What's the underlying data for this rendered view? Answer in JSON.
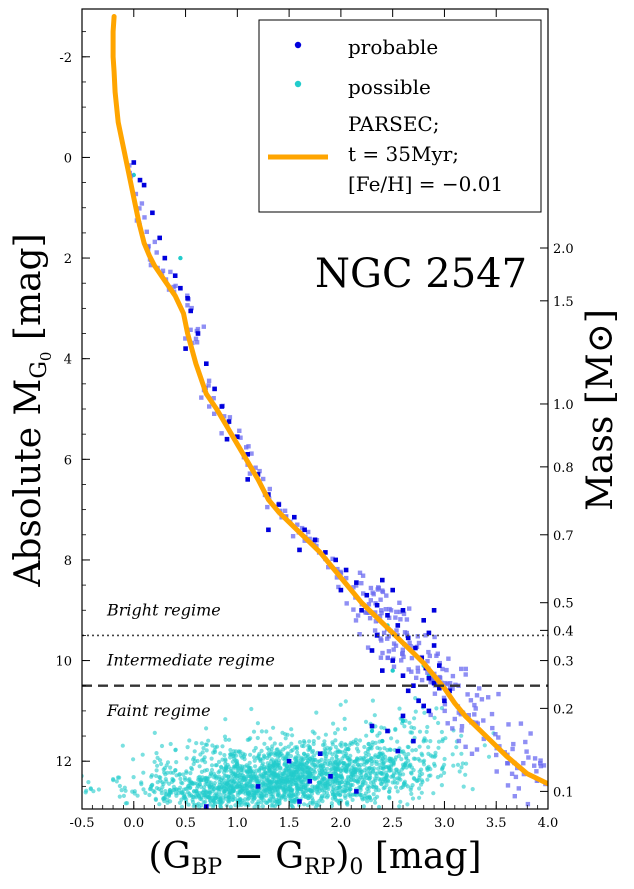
{
  "chart_data": {
    "type": "scatter",
    "annotation": "NGC 2547",
    "xlabel": {
      "main": "(G",
      "sub1": "BP",
      "mid": " − G",
      "sub2": "RP",
      "paren": ")",
      "sub3": "0",
      "tail": " [mag]"
    },
    "ylabel": {
      "main": "Absolute M",
      "sub": "G",
      "subsub": "0",
      "tail": " [mag]"
    },
    "y2label": {
      "main": "Mass [M",
      "tail": "]"
    },
    "xlim": [
      -0.5,
      4.0
    ],
    "ylim": [
      12.95,
      -2.95
    ],
    "inverted_y": true,
    "x_ticks": [
      "-0.5",
      "0.0",
      "0.5",
      "1.0",
      "1.5",
      "2.0",
      "2.5",
      "3.0",
      "3.5",
      "4.0"
    ],
    "y_ticks": [
      "-2",
      "0",
      "2",
      "4",
      "6",
      "8",
      "10",
      "12"
    ],
    "mass_ticks": [
      {
        "label": "2.0",
        "mag": 1.8
      },
      {
        "label": "1.5",
        "mag": 2.85
      },
      {
        "label": "1.0",
        "mag": 4.9
      },
      {
        "label": "0.8",
        "mag": 6.15
      },
      {
        "label": "0.7",
        "mag": 7.5
      },
      {
        "label": "0.5",
        "mag": 8.85
      },
      {
        "label": "0.4",
        "mag": 9.4
      },
      {
        "label": "0.3",
        "mag": 10.0
      },
      {
        "label": "0.2",
        "mag": 10.95
      },
      {
        "label": "0.1",
        "mag": 12.6
      }
    ],
    "regime_lines": [
      {
        "mag": 9.5,
        "style": "dotted"
      },
      {
        "mag": 10.5,
        "style": "dashed"
      }
    ],
    "regime_labels": [
      {
        "text": "Bright regime",
        "mag": 9.0
      },
      {
        "text": "Intermediate regime",
        "mag": 10.0
      },
      {
        "text": "Faint regime",
        "mag": 11.0
      }
    ],
    "legend": {
      "position": "top-right",
      "entries": [
        {
          "label": "probable",
          "color": "#0000dd",
          "kind": "marker"
        },
        {
          "label": "possible",
          "color": "#22cccc",
          "kind": "marker"
        },
        {
          "label_lines": [
            "PARSEC;",
            "t = 35Myr;",
            "[Fe/H] = −0.01"
          ],
          "color": "#ffa500",
          "kind": "line"
        }
      ]
    },
    "colors": {
      "probable": "#0000dd",
      "possible": "#22cccc",
      "isochrone": "#ffa500"
    },
    "isochrone": {
      "x": [
        -0.19,
        -0.2,
        -0.2,
        -0.19,
        -0.18,
        -0.15,
        -0.1,
        -0.05,
        0.0,
        0.05,
        0.1,
        0.15,
        0.2,
        0.3,
        0.4,
        0.48,
        0.52,
        0.6,
        0.7,
        0.8,
        0.9,
        1.0,
        1.1,
        1.2,
        1.3,
        1.4,
        1.5,
        1.6,
        1.7,
        1.8,
        1.9,
        2.0,
        2.1,
        2.2,
        2.3,
        2.4,
        2.5,
        2.6,
        2.7,
        2.8,
        2.9,
        3.0,
        3.1,
        3.2,
        3.4,
        3.6,
        3.8,
        4.0
      ],
      "y": [
        -2.8,
        -2.5,
        -2.0,
        -1.7,
        -1.3,
        -0.7,
        -0.2,
        0.3,
        0.8,
        1.3,
        1.7,
        1.95,
        2.15,
        2.45,
        2.75,
        3.1,
        3.5,
        4.1,
        4.7,
        5.0,
        5.35,
        5.7,
        6.05,
        6.4,
        6.8,
        7.05,
        7.25,
        7.45,
        7.65,
        7.85,
        8.1,
        8.35,
        8.6,
        8.85,
        9.05,
        9.25,
        9.45,
        9.65,
        9.85,
        10.05,
        10.3,
        10.55,
        10.85,
        11.1,
        11.5,
        11.9,
        12.25,
        12.45
      ]
    },
    "probable_points": [
      [
        0.0,
        0.1
      ],
      [
        0.06,
        0.45
      ],
      [
        0.1,
        0.55
      ],
      [
        0.18,
        1.1
      ],
      [
        0.25,
        1.6
      ],
      [
        0.3,
        2.0
      ],
      [
        0.4,
        2.35
      ],
      [
        0.45,
        2.6
      ],
      [
        0.52,
        2.8
      ],
      [
        0.55,
        3.05
      ],
      [
        0.62,
        3.5
      ],
      [
        0.7,
        4.1
      ],
      [
        0.78,
        4.6
      ],
      [
        0.85,
        4.95
      ],
      [
        0.92,
        5.25
      ],
      [
        1.0,
        5.55
      ],
      [
        1.1,
        5.9
      ],
      [
        1.2,
        6.3
      ],
      [
        1.3,
        6.7
      ],
      [
        1.4,
        6.9
      ],
      [
        1.55,
        7.15
      ],
      [
        1.65,
        7.4
      ],
      [
        1.75,
        7.6
      ],
      [
        1.85,
        7.85
      ],
      [
        1.95,
        8.0
      ],
      [
        2.05,
        8.2
      ],
      [
        2.15,
        8.45
      ],
      [
        2.25,
        8.7
      ],
      [
        2.35,
        8.9
      ],
      [
        2.45,
        9.1
      ],
      [
        2.55,
        9.3
      ],
      [
        2.65,
        9.55
      ],
      [
        2.72,
        9.75
      ],
      [
        2.78,
        9.95
      ],
      [
        2.82,
        10.15
      ],
      [
        2.85,
        10.35
      ],
      [
        2.9,
        10.45
      ],
      [
        2.95,
        10.55
      ],
      [
        3.05,
        10.6
      ],
      [
        2.7,
        10.5
      ],
      [
        2.75,
        10.8
      ],
      [
        2.8,
        10.9
      ],
      [
        2.6,
        10.3
      ],
      [
        2.5,
        10.0
      ],
      [
        2.4,
        10.2
      ],
      [
        2.3,
        11.3
      ],
      [
        2.45,
        11.4
      ],
      [
        2.6,
        11.1
      ],
      [
        2.7,
        11.6
      ],
      [
        2.55,
        11.8
      ],
      [
        2.3,
        9.8
      ],
      [
        2.2,
        9.0
      ],
      [
        2.0,
        8.6
      ],
      [
        1.6,
        7.8
      ],
      [
        1.3,
        7.4
      ],
      [
        0.9,
        5.6
      ],
      [
        0.5,
        3.8
      ],
      [
        1.1,
        6.4
      ],
      [
        1.5,
        12.0
      ],
      [
        1.7,
        12.4
      ],
      [
        1.9,
        12.3
      ],
      [
        1.2,
        12.5
      ],
      [
        1.6,
        12.8
      ],
      [
        0.7,
        12.9
      ],
      [
        2.15,
        12.6
      ],
      [
        1.8,
        11.85
      ],
      [
        2.35,
        9.5
      ],
      [
        2.6,
        9.0
      ],
      [
        2.8,
        9.2
      ],
      [
        2.9,
        9.7
      ],
      [
        2.95,
        10.1
      ],
      [
        2.65,
        10.6
      ],
      [
        2.85,
        11.0
      ],
      [
        3.0,
        10.8
      ],
      [
        2.5,
        8.6
      ],
      [
        2.4,
        8.4
      ],
      [
        2.85,
        9.45
      ],
      [
        2.9,
        9.0
      ]
    ],
    "possible_points": [
      [
        0.0,
        0.35
      ],
      [
        0.45,
        2.0
      ],
      [
        2.8,
        10.1
      ],
      [
        2.85,
        10.3
      ],
      [
        2.45,
        9.3
      ],
      [
        2.5,
        10.2
      ],
      [
        2.3,
        11.4
      ],
      [
        2.6,
        11.2
      ],
      [
        2.4,
        11.6
      ]
    ],
    "possible_cloud": [
      {
        "cx": 1.45,
        "cy": 12.25,
        "sx": 0.55,
        "sy": 0.32,
        "n": 1100
      },
      {
        "cx": 0.9,
        "cy": 12.6,
        "sx": 0.55,
        "sy": 0.2,
        "n": 500
      },
      {
        "cx": 2.2,
        "cy": 12.2,
        "sx": 0.45,
        "sy": 0.35,
        "n": 350
      },
      {
        "cx": 2.6,
        "cy": 11.7,
        "sx": 0.3,
        "sy": 0.5,
        "n": 120
      }
    ]
  }
}
